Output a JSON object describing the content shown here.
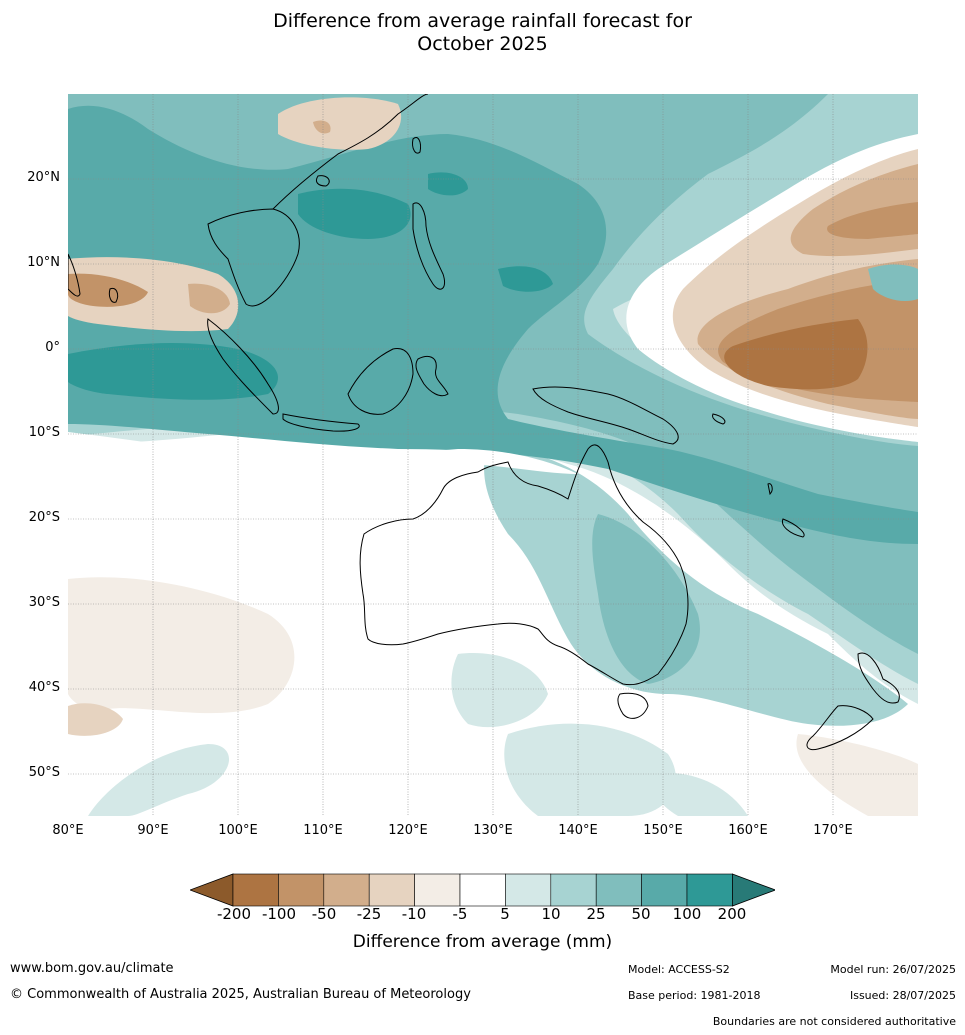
{
  "title": {
    "line1": "Difference from average rainfall forecast for",
    "line2": "October 2025"
  },
  "axes": {
    "lat_labels": [
      "20°N",
      "10°N",
      "0°",
      "10°S",
      "20°S",
      "30°S",
      "40°S",
      "50°S"
    ],
    "lon_labels": [
      "80°E",
      "90°E",
      "100°E",
      "110°E",
      "120°E",
      "130°E",
      "140°E",
      "150°E",
      "160°E",
      "170°E"
    ],
    "lat_range": [
      -55,
      30
    ],
    "lon_range": [
      80,
      180
    ]
  },
  "colorbar": {
    "ticks": [
      "-200",
      "-100",
      "-50",
      "-25",
      "-10",
      "-5",
      "5",
      "10",
      "25",
      "50",
      "100",
      "200"
    ],
    "colors": [
      "#8c5a2b",
      "#ad7442",
      "#c29368",
      "#d2ae8c",
      "#e6d3c0",
      "#f3ede6",
      "#ffffff",
      "#d4e8e7",
      "#a7d3d2",
      "#80bebd",
      "#58aaa9",
      "#2e9996",
      "#287a77"
    ],
    "label": "Difference from average (mm)"
  },
  "footer": {
    "website": "www.bom.gov.au/climate",
    "copyright": "© Commonwealth of Australia 2025, Australian Bureau of Meteorology",
    "model": "Model: ACCESS-S2",
    "base_period": "Base period: 1981-2018",
    "model_run": "Model run: 26/07/2025",
    "issued": "Issued: 28/07/2025",
    "disclaimer": "Boundaries are not considered authoritative"
  }
}
